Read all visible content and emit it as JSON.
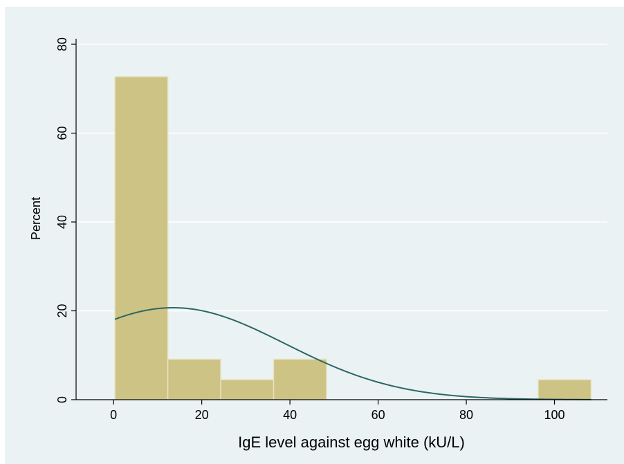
{
  "chart_data": {
    "type": "bar",
    "subtype": "histogram-with-normal-density",
    "title": "",
    "xlabel": "IgE level against egg white (kU/L)",
    "ylabel": "Percent",
    "xlim": [
      -8.5,
      112
    ],
    "ylim": [
      0,
      80
    ],
    "xticks": [
      0,
      20,
      40,
      60,
      80,
      100
    ],
    "yticks": [
      0,
      20,
      40,
      60,
      80
    ],
    "grid": true,
    "legend": "none",
    "bins": [
      {
        "x0": 0.3,
        "x1": 12.3,
        "value": 72.7
      },
      {
        "x0": 12.3,
        "x1": 24.3,
        "value": 9.1
      },
      {
        "x0": 24.3,
        "x1": 36.3,
        "value": 4.5
      },
      {
        "x0": 36.3,
        "x1": 48.3,
        "value": 9.1
      },
      {
        "x0": 48.3,
        "x1": 60.3,
        "value": 0
      },
      {
        "x0": 60.3,
        "x1": 72.3,
        "value": 0
      },
      {
        "x0": 72.3,
        "x1": 84.3,
        "value": 0
      },
      {
        "x0": 84.3,
        "x1": 96.3,
        "value": 0
      },
      {
        "x0": 96.3,
        "x1": 108.3,
        "value": 4.5
      }
    ],
    "density_curve": {
      "mean": 13.5,
      "sd": 25.5,
      "x_range": [
        0.3,
        108.3
      ],
      "y_at_peak": 20.7
    },
    "colors": {
      "bar_fill": "#cdc384",
      "bar_edge": "#e8e2c2",
      "curve": "#2b6664",
      "background": "#eaf2f3",
      "gridline": "#ffffff"
    }
  }
}
